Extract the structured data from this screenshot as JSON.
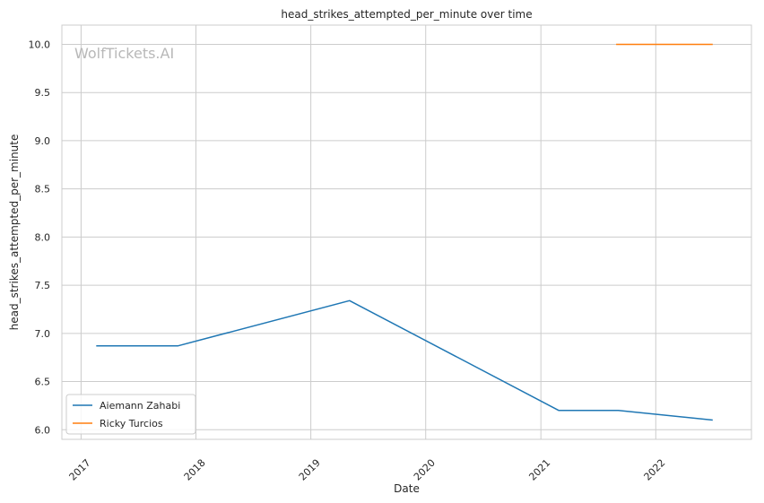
{
  "chart_data": {
    "type": "line",
    "title": "head_strikes_attempted_per_minute over time",
    "xlabel": "Date",
    "ylabel": "head_strikes_attempted_per_minute",
    "watermark": "WolfTickets.AI",
    "x_ticks": [
      "2017",
      "2018",
      "2019",
      "2020",
      "2021",
      "2022"
    ],
    "y_ticks": [
      "6.0",
      "6.5",
      "7.0",
      "7.5",
      "8.0",
      "8.5",
      "9.0",
      "9.5",
      "10.0"
    ],
    "xlim": [
      "2016-11-01",
      "2022-11-01"
    ],
    "ylim": [
      5.9,
      10.2
    ],
    "grid": true,
    "legend_position": "lower-left",
    "series": [
      {
        "name": "Aiemann Zahabi",
        "color": "#1f77b4",
        "points": [
          {
            "x": "2017-02-18",
            "y": 6.87
          },
          {
            "x": "2017-11-04",
            "y": 6.87
          },
          {
            "x": "2019-05-04",
            "y": 7.34
          },
          {
            "x": "2021-02-27",
            "y": 6.2
          },
          {
            "x": "2021-09-04",
            "y": 6.2
          },
          {
            "x": "2022-07-01",
            "y": 6.1
          }
        ]
      },
      {
        "name": "Ricky Turcios",
        "color": "#ff7f0e",
        "points": [
          {
            "x": "2021-08-28",
            "y": 10.0
          },
          {
            "x": "2022-07-01",
            "y": 10.0
          }
        ]
      }
    ]
  }
}
